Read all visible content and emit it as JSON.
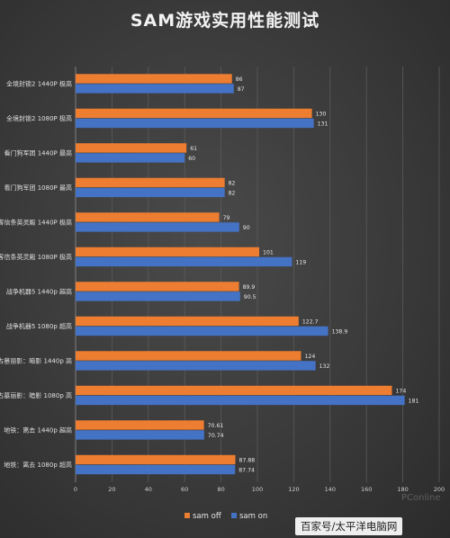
{
  "chart_data": {
    "type": "bar",
    "orientation": "horizontal",
    "title": "SAM游戏实用性能测试",
    "categories": [
      "全境封锁2 1440P 极高",
      "全境封锁2 1080P 极高",
      "看门狗军团 1440P 最高",
      "看门狗军团 1080P 最高",
      "刺客信条英灵殿 1440P 极高",
      "刺客信条英灵殿 1080P 极高",
      "战争机器5 1440p 超高",
      "战争机器5 1080p 超高",
      "古墓丽影：暗影 1440p 高",
      "古墓丽影：暗影 1080p 高",
      "地铁：离去 1440p 超高",
      "地铁：离去 1080p 超高"
    ],
    "series": [
      {
        "name": "sam off",
        "color": "#ed7d31",
        "values": [
          86,
          130,
          61,
          82,
          79,
          101,
          89.9,
          122.7,
          124,
          174,
          70.61,
          87.88
        ],
        "labels": [
          "86",
          "130",
          "61",
          "82",
          "79",
          "101",
          "89.9",
          "122.7",
          "124",
          "174",
          "70.61",
          "87.88"
        ]
      },
      {
        "name": "sam on",
        "color": "#4472c4",
        "values": [
          87,
          131,
          60,
          82,
          90,
          119,
          90.5,
          138.9,
          132,
          181,
          70.74,
          87.74
        ],
        "labels": [
          "87",
          "131",
          "60",
          "82",
          "90",
          "119",
          "90.5",
          "138.9",
          "132",
          "181",
          "70.74",
          "87.74"
        ]
      }
    ],
    "xlim": [
      0,
      200
    ],
    "xticks": [
      "0",
      "20",
      "40",
      "60",
      "80",
      "100",
      "120",
      "140",
      "160",
      "180",
      "200"
    ],
    "grid": true,
    "legend_position": "bottom"
  },
  "watermarks": {
    "corner": "PConline",
    "site": "百家号/太平洋电脑网"
  }
}
